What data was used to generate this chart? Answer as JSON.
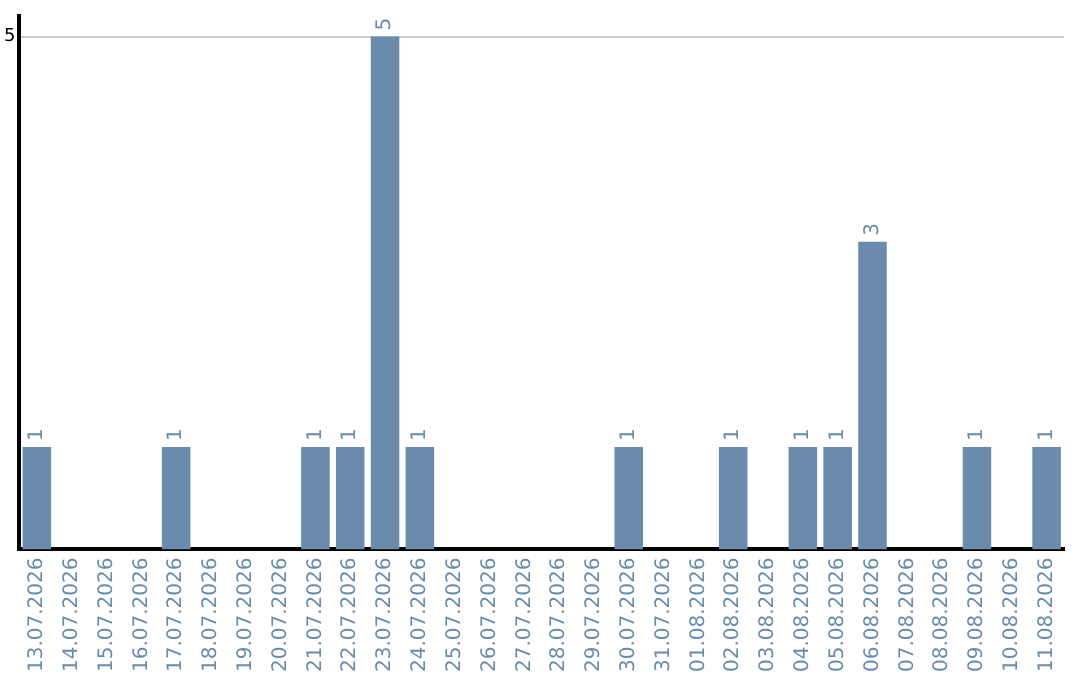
{
  "chart_data": {
    "type": "bar",
    "categories": [
      "13.07.2026",
      "14.07.2026",
      "15.07.2026",
      "16.07.2026",
      "17.07.2026",
      "18.07.2026",
      "19.07.2026",
      "20.07.2026",
      "21.07.2026",
      "22.07.2026",
      "23.07.2026",
      "24.07.2026",
      "25.07.2026",
      "26.07.2026",
      "27.07.2026",
      "28.07.2026",
      "29.07.2026",
      "30.07.2026",
      "31.07.2026",
      "01.08.2026",
      "02.08.2026",
      "03.08.2026",
      "04.08.2026",
      "05.08.2026",
      "06.08.2026",
      "07.08.2026",
      "08.08.2026",
      "09.08.2026",
      "10.08.2026",
      "11.08.2026"
    ],
    "values": [
      1,
      0,
      0,
      0,
      1,
      0,
      0,
      0,
      1,
      1,
      5,
      1,
      0,
      0,
      0,
      0,
      0,
      1,
      0,
      0,
      1,
      0,
      1,
      1,
      3,
      0,
      0,
      1,
      0,
      1
    ],
    "color": "#6a8bab",
    "value_labels": [
      "1",
      null,
      null,
      null,
      "1",
      null,
      null,
      null,
      "1",
      "1",
      "5",
      "1",
      null,
      null,
      null,
      null,
      null,
      "1",
      null,
      null,
      "1",
      null,
      "1",
      "1",
      "3",
      null,
      null,
      "1",
      null,
      "1"
    ],
    "ylim": [
      0,
      5.2
    ],
    "yticks": [
      5
    ],
    "grid": "y",
    "legend": false
  }
}
